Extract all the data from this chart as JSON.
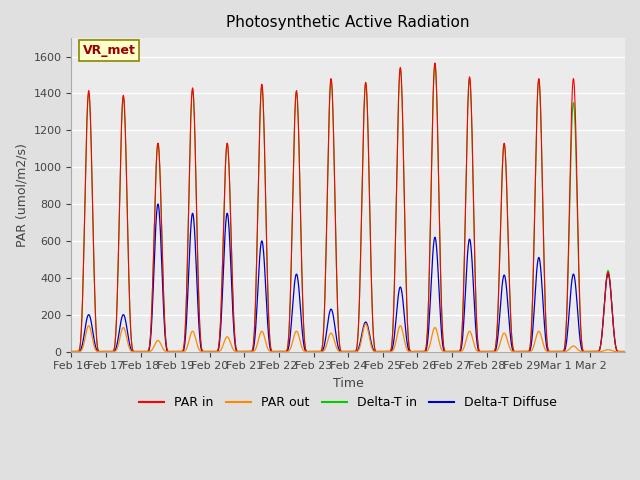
{
  "title": "Photosynthetic Active Radiation",
  "ylabel": "PAR (umol/m2/s)",
  "xlabel": "Time",
  "annotation": "VR_met",
  "ylim": [
    0,
    1700
  ],
  "legend_labels": [
    "PAR in",
    "PAR out",
    "Delta-T in",
    "Delta-T Diffuse"
  ],
  "line_colors": [
    "#ff0000",
    "#ff8800",
    "#00cc00",
    "#0000cc"
  ],
  "tick_labels": [
    "Feb 16",
    "Feb 17",
    "Feb 18",
    "Feb 19",
    "Feb 20",
    "Feb 21",
    "Feb 22",
    "Feb 23",
    "Feb 24",
    "Feb 25",
    "Feb 26",
    "Feb 27",
    "Feb 28",
    "Feb 29",
    "Mar 1",
    "Mar 2"
  ],
  "background_color": "#e0e0e0",
  "plot_bg_color": "#ebebeb",
  "grid_color": "#ffffff",
  "n_days": 16,
  "points_per_day": 96,
  "day_peaks_par_in": [
    1415,
    1390,
    1130,
    1430,
    1130,
    1450,
    1415,
    1480,
    1460,
    1540,
    1565,
    1490,
    1130,
    1480,
    1480,
    430
  ],
  "day_peaks_par_out": [
    140,
    130,
    60,
    110,
    80,
    110,
    110,
    100,
    150,
    140,
    130,
    110,
    100,
    110,
    30,
    10
  ],
  "day_peaks_delta_in": [
    1400,
    1380,
    1130,
    1420,
    1130,
    1440,
    1410,
    1475,
    1455,
    1535,
    1560,
    1480,
    1125,
    1475,
    1350,
    440
  ],
  "day_peaks_delta_diffuse": [
    200,
    200,
    800,
    750,
    750,
    600,
    420,
    230,
    160,
    350,
    620,
    610,
    415,
    510,
    420,
    420
  ]
}
